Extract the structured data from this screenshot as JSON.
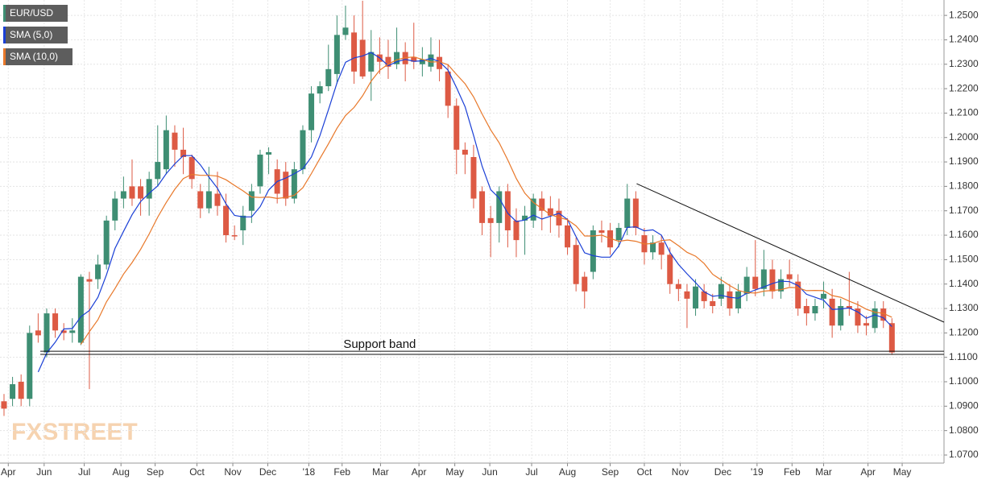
{
  "chart_data": {
    "type": "candlestick",
    "title": "EUR/USD",
    "watermark": "FXSTREET",
    "up_color": "#3e8e73",
    "down_color": "#dd5a44",
    "candles": [
      [
        1.092,
        1.095,
        1.086,
        1.089
      ],
      [
        1.093,
        1.102,
        1.09,
        1.099
      ],
      [
        1.1,
        1.103,
        1.09,
        1.093
      ],
      [
        1.093,
        1.123,
        1.09,
        1.12
      ],
      [
        1.121,
        1.128,
        1.116,
        1.119
      ],
      [
        1.112,
        1.13,
        1.11,
        1.128
      ],
      [
        1.128,
        1.13,
        1.118,
        1.121
      ],
      [
        1.121,
        1.124,
        1.117,
        1.12
      ],
      [
        1.12,
        1.126,
        1.116,
        1.121
      ],
      [
        1.116,
        1.144,
        1.115,
        1.143
      ],
      [
        1.142,
        1.145,
        1.097,
        1.141
      ],
      [
        1.142,
        1.152,
        1.138,
        1.148
      ],
      [
        1.148,
        1.168,
        1.146,
        1.166
      ],
      [
        1.166,
        1.178,
        1.162,
        1.175
      ],
      [
        1.175,
        1.184,
        1.171,
        1.178
      ],
      [
        1.18,
        1.191,
        1.172,
        1.175
      ],
      [
        1.18,
        1.183,
        1.168,
        1.175
      ],
      [
        1.175,
        1.186,
        1.168,
        1.183
      ],
      [
        1.183,
        1.205,
        1.18,
        1.19
      ],
      [
        1.187,
        1.209,
        1.185,
        1.203
      ],
      [
        1.202,
        1.205,
        1.188,
        1.195
      ],
      [
        1.195,
        1.204,
        1.185,
        1.192
      ],
      [
        1.192,
        1.193,
        1.179,
        1.183
      ],
      [
        1.178,
        1.181,
        1.167,
        1.171
      ],
      [
        1.171,
        1.188,
        1.169,
        1.178
      ],
      [
        1.177,
        1.186,
        1.168,
        1.172
      ],
      [
        1.172,
        1.177,
        1.157,
        1.16
      ],
      [
        1.16,
        1.164,
        1.158,
        1.1595
      ],
      [
        1.162,
        1.172,
        1.156,
        1.168
      ],
      [
        1.17,
        1.181,
        1.165,
        1.178
      ],
      [
        1.18,
        1.195,
        1.177,
        1.193
      ],
      [
        1.193,
        1.196,
        1.185,
        1.194
      ],
      [
        1.187,
        1.191,
        1.173,
        1.177
      ],
      [
        1.186,
        1.19,
        1.172,
        1.175
      ],
      [
        1.175,
        1.19,
        1.173,
        1.187
      ],
      [
        1.187,
        1.205,
        1.185,
        1.203
      ],
      [
        1.203,
        1.221,
        1.198,
        1.218
      ],
      [
        1.218,
        1.223,
        1.214,
        1.221
      ],
      [
        1.221,
        1.238,
        1.219,
        1.228
      ],
      [
        1.226,
        1.25,
        1.222,
        1.242
      ],
      [
        1.242,
        1.254,
        1.24,
        1.245
      ],
      [
        1.243,
        1.25,
        1.222,
        1.227
      ],
      [
        1.24,
        1.256,
        1.224,
        1.225
      ],
      [
        1.227,
        1.244,
        1.215,
        1.235
      ],
      [
        1.234,
        1.241,
        1.226,
        1.231
      ],
      [
        1.233,
        1.24,
        1.224,
        1.229
      ],
      [
        1.23,
        1.245,
        1.228,
        1.235
      ],
      [
        1.235,
        1.239,
        1.223,
        1.23
      ],
      [
        1.233,
        1.247,
        1.228,
        1.231
      ],
      [
        1.23,
        1.237,
        1.225,
        1.232
      ],
      [
        1.229,
        1.241,
        1.227,
        1.234
      ],
      [
        1.233,
        1.24,
        1.223,
        1.228
      ],
      [
        1.227,
        1.23,
        1.208,
        1.213
      ],
      [
        1.213,
        1.216,
        1.185,
        1.195
      ],
      [
        1.195,
        1.198,
        1.185,
        1.193
      ],
      [
        1.192,
        1.197,
        1.171,
        1.175
      ],
      [
        1.178,
        1.18,
        1.16,
        1.165
      ],
      [
        1.167,
        1.172,
        1.151,
        1.165
      ],
      [
        1.165,
        1.18,
        1.157,
        1.178
      ],
      [
        1.178,
        1.181,
        1.155,
        1.162
      ],
      [
        1.166,
        1.171,
        1.151,
        1.158
      ],
      [
        1.166,
        1.172,
        1.152,
        1.168
      ],
      [
        1.166,
        1.177,
        1.163,
        1.175
      ],
      [
        1.175,
        1.178,
        1.162,
        1.17
      ],
      [
        1.171,
        1.176,
        1.161,
        1.168
      ],
      [
        1.17,
        1.175,
        1.159,
        1.164
      ],
      [
        1.164,
        1.167,
        1.152,
        1.155
      ],
      [
        1.156,
        1.159,
        1.137,
        1.14
      ],
      [
        1.143,
        1.145,
        1.13,
        1.137
      ],
      [
        1.145,
        1.164,
        1.142,
        1.162
      ],
      [
        1.162,
        1.166,
        1.157,
        1.161
      ],
      [
        1.162,
        1.165,
        1.152,
        1.155
      ],
      [
        1.158,
        1.165,
        1.155,
        1.163
      ],
      [
        1.163,
        1.181,
        1.16,
        1.175
      ],
      [
        1.175,
        1.178,
        1.16,
        1.163
      ],
      [
        1.16,
        1.163,
        1.148,
        1.153
      ],
      [
        1.153,
        1.16,
        1.15,
        1.157
      ],
      [
        1.157,
        1.16,
        1.146,
        1.152
      ],
      [
        1.152,
        1.155,
        1.136,
        1.14
      ],
      [
        1.14,
        1.142,
        1.133,
        1.138
      ],
      [
        1.137,
        1.14,
        1.122,
        1.134
      ],
      [
        1.13,
        1.142,
        1.127,
        1.139
      ],
      [
        1.137,
        1.14,
        1.13,
        1.133
      ],
      [
        1.133,
        1.136,
        1.128,
        1.131
      ],
      [
        1.134,
        1.143,
        1.131,
        1.14
      ],
      [
        1.137,
        1.14,
        1.127,
        1.13
      ],
      [
        1.13,
        1.14,
        1.128,
        1.137
      ],
      [
        1.136,
        1.147,
        1.133,
        1.143
      ],
      [
        1.143,
        1.158,
        1.135,
        1.138
      ],
      [
        1.138,
        1.154,
        1.135,
        1.146
      ],
      [
        1.146,
        1.15,
        1.134,
        1.137
      ],
      [
        1.137,
        1.146,
        1.134,
        1.142
      ],
      [
        1.144,
        1.15,
        1.139,
        1.142
      ],
      [
        1.141,
        1.144,
        1.127,
        1.13
      ],
      [
        1.131,
        1.134,
        1.123,
        1.128
      ],
      [
        1.128,
        1.134,
        1.125,
        1.131
      ],
      [
        1.134,
        1.141,
        1.13,
        1.136
      ],
      [
        1.134,
        1.138,
        1.118,
        1.123
      ],
      [
        1.123,
        1.134,
        1.121,
        1.131
      ],
      [
        1.131,
        1.145,
        1.127,
        1.13
      ],
      [
        1.13,
        1.133,
        1.12,
        1.123
      ],
      [
        1.124,
        1.127,
        1.119,
        1.123
      ],
      [
        1.122,
        1.133,
        1.12,
        1.13
      ],
      [
        1.13,
        1.133,
        1.122,
        1.125
      ],
      [
        1.124,
        1.126,
        1.111,
        1.112
      ]
    ],
    "series": [
      {
        "name": "SMA (5,0)",
        "color": "#1a3fd6",
        "values": [
          null,
          null,
          null,
          null,
          1.104,
          1.1118,
          1.1162,
          1.1216,
          1.1218,
          1.1266,
          1.1292,
          1.1346,
          1.1438,
          1.1546,
          1.1616,
          1.1684,
          1.1738,
          1.1772,
          1.1802,
          1.1852,
          1.1892,
          1.1926,
          1.1926,
          1.1888,
          1.1838,
          1.1792,
          1.1728,
          1.1681,
          1.1675,
          1.1675,
          1.1717,
          1.1785,
          1.182,
          1.1834,
          1.1852,
          1.1872,
          1.192,
          1.2008,
          1.2114,
          1.2224,
          1.2308,
          1.2326,
          1.2334,
          1.2348,
          1.2326,
          1.2294,
          1.231,
          1.232,
          1.2312,
          1.2314,
          1.2324,
          1.231,
          1.2276,
          1.2204,
          1.2126,
          1.2008,
          1.1882,
          1.1786,
          1.1752,
          1.169,
          1.1656,
          1.1662,
          1.1682,
          1.1666,
          1.1678,
          1.169,
          1.1664,
          1.1594,
          1.1528,
          1.1516,
          1.151,
          1.151,
          1.1556,
          1.1632,
          1.1634,
          1.1618,
          1.1622,
          1.16,
          1.153,
          1.148,
          1.1442,
          1.1406,
          1.1368,
          1.135,
          1.1354,
          1.1346,
          1.1342,
          1.1362,
          1.1376,
          1.1388,
          1.1402,
          1.1412,
          1.141,
          1.1394,
          1.1358,
          1.1346,
          1.1334,
          1.1296,
          1.1298,
          1.1302,
          1.1286,
          1.126,
          1.1274,
          1.1262,
          1.1226
        ]
      },
      {
        "name": "SMA (10,0)",
        "color": "#e8782a",
        "values": [
          null,
          null,
          null,
          null,
          null,
          null,
          null,
          null,
          null,
          1.1153,
          1.1205,
          1.1254,
          1.1327,
          1.1382,
          1.1441,
          1.1488,
          1.1542,
          1.1605,
          1.1674,
          1.1734,
          1.1788,
          1.1832,
          1.1849,
          1.1845,
          1.1845,
          1.1842,
          1.1827,
          1.18035,
          1.17815,
          1.17565,
          1.17545,
          1.17565,
          1.17505,
          1.17545,
          1.17635,
          1.17945,
          1.18525,
          1.1914,
          1.1974,
          1.2038,
          1.209,
          1.2123,
          1.2171,
          1.2231,
          1.2275,
          1.2301,
          1.2318,
          1.2327,
          1.233,
          1.232,
          1.2309,
          1.231,
          1.2298,
          1.2258,
          1.222,
          1.2166,
          1.2096,
          1.2031,
          1.1978,
          1.1908,
          1.1832,
          1.1772,
          1.1734,
          1.1709,
          1.1684,
          1.1673,
          1.1663,
          1.1638,
          1.1597,
          1.1597,
          1.16,
          1.1587,
          1.1575,
          1.158,
          1.1575,
          1.1564,
          1.1566,
          1.1578,
          1.1581,
          1.1557,
          1.153,
          1.1514,
          1.1484,
          1.144,
          1.1417,
          1.1394,
          1.1374,
          1.1365,
          1.1363,
          1.1371,
          1.1374,
          1.1377,
          1.1386,
          1.1385,
          1.1373,
          1.1374,
          1.1373,
          1.1353,
          1.1346,
          1.133,
          1.1316,
          1.1297,
          1.1285,
          1.128,
          1.1264
        ]
      }
    ],
    "trend_lines": [
      {
        "x": [
          74.1,
          110.1
        ],
        "y": [
          1.1811,
          1.1244
        ]
      },
      {
        "x": [
          4.25,
          110.1
        ],
        "y": [
          1.1125,
          1.1125
        ]
      },
      {
        "x": [
          4.25,
          110.1
        ],
        "y": [
          1.1112,
          1.1112
        ]
      }
    ],
    "annotation": {
      "text": "Support band",
      "x": 44,
      "y": 1.1152
    },
    "xlim": [
      -0.47,
      110.1
    ],
    "xticks": [
      {
        "value": 0.5,
        "label": "Apr"
      },
      {
        "value": 4.7,
        "label": "Jun"
      },
      {
        "value": 9.4,
        "label": "Jul"
      },
      {
        "value": 13.7,
        "label": "Aug"
      },
      {
        "value": 17.7,
        "label": "Sep"
      },
      {
        "value": 22.6,
        "label": "Oct"
      },
      {
        "value": 26.8,
        "label": "Nov"
      },
      {
        "value": 30.9,
        "label": "Dec"
      },
      {
        "value": 35.7,
        "label": "'18"
      },
      {
        "value": 39.6,
        "label": "Feb"
      },
      {
        "value": 44.1,
        "label": "Mar"
      },
      {
        "value": 48.6,
        "label": "Apr"
      },
      {
        "value": 52.8,
        "label": "May"
      },
      {
        "value": 56.9,
        "label": "Jun"
      },
      {
        "value": 61.8,
        "label": "Jul"
      },
      {
        "value": 66,
        "label": "Aug"
      },
      {
        "value": 71,
        "label": "Sep"
      },
      {
        "value": 75,
        "label": "Oct"
      },
      {
        "value": 79.2,
        "label": "Nov"
      },
      {
        "value": 84.2,
        "label": "Dec"
      },
      {
        "value": 88.2,
        "label": "'19"
      },
      {
        "value": 92.3,
        "label": "Feb"
      },
      {
        "value": 96,
        "label": "Mar"
      },
      {
        "value": 101.2,
        "label": "Apr"
      },
      {
        "value": 105.2,
        "label": "May"
      }
    ],
    "ylim": [
      1.0667,
      1.2563
    ],
    "yticks": [
      {
        "value": 1.07,
        "label": "1.0700"
      },
      {
        "value": 1.08,
        "label": "1.0800"
      },
      {
        "value": 1.09,
        "label": "1.0900"
      },
      {
        "value": 1.1,
        "label": "1.1000"
      },
      {
        "value": 1.11,
        "label": "1.1100"
      },
      {
        "value": 1.12,
        "label": "1.1200"
      },
      {
        "value": 1.13,
        "label": "1.1300"
      },
      {
        "value": 1.14,
        "label": "1.1400"
      },
      {
        "value": 1.15,
        "label": "1.1500"
      },
      {
        "value": 1.16,
        "label": "1.1600"
      },
      {
        "value": 1.17,
        "label": "1.1700"
      },
      {
        "value": 1.18,
        "label": "1.1800"
      },
      {
        "value": 1.19,
        "label": "1.1900"
      },
      {
        "value": 1.2,
        "label": "1.2000"
      },
      {
        "value": 1.21,
        "label": "1.2100"
      },
      {
        "value": 1.22,
        "label": "1.2200"
      },
      {
        "value": 1.23,
        "label": "1.2300"
      },
      {
        "value": 1.24,
        "label": "1.2400"
      },
      {
        "value": 1.25,
        "label": "1.2500"
      }
    ],
    "grid": true
  }
}
